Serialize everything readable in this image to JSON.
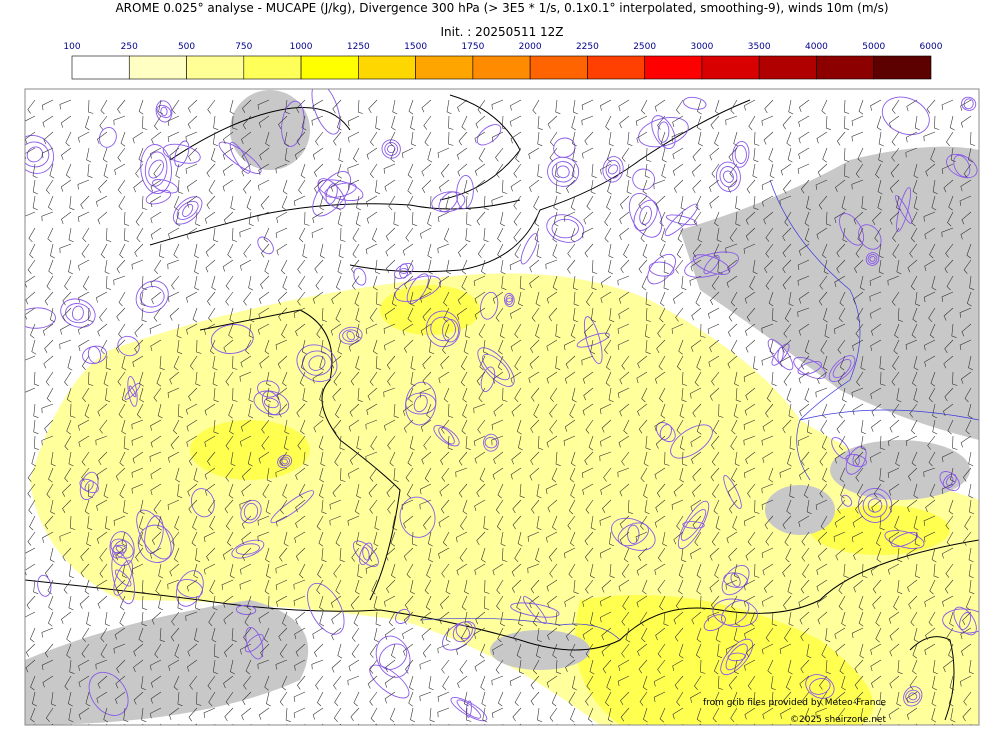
{
  "header": {
    "title": "AROME 0.025° analyse - MUCAPE (J/kg), Divergence 300 hPa (> 3E5 * 1/s, 0.1x0.1° interpolated, smoothing-9), winds 10m (m/s)",
    "init": "Init. : 20250511 12Z"
  },
  "colorbar": {
    "ticks": [
      100,
      250,
      500,
      750,
      1000,
      1250,
      1500,
      1750,
      2000,
      2250,
      2500,
      3000,
      3500,
      4000,
      5000,
      6000
    ],
    "colors": [
      "#ffffff",
      "#ffffc4",
      "#ffff96",
      "#ffff5a",
      "#ffff00",
      "#ffd700",
      "#ffa500",
      "#ff8c00",
      "#ff6400",
      "#ff4000",
      "#ff0000",
      "#d80000",
      "#b00000",
      "#8c0000",
      "#5c0000"
    ]
  },
  "credits": {
    "source": "from grib files provided by Meteo-France",
    "copyright": "©2025 sheirzone.net"
  }
}
